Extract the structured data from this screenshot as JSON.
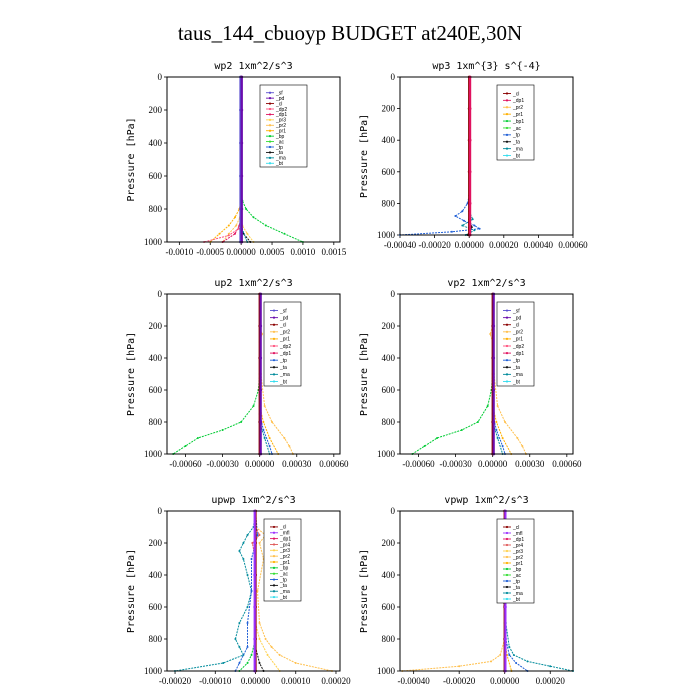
{
  "figure_title": "taus_144_cbuoyp  BUDGET at240E,30N",
  "colors": {
    "sf": "#5a4fcf",
    "pd": "#6a0dad",
    "cl": "#8b0000",
    "mfl": "#9b30ff",
    "dp1": "#e0115f",
    "dp2": "#ff4f7b",
    "dp4": "#cc3366",
    "pr1": "#ffb000",
    "pr2": "#ffc04d",
    "pr3": "#ffd24d",
    "pr4": "#e05a5a",
    "bp": "#00cc33",
    "bp1": "#00cc33",
    "ac": "#33dd33",
    "tp": "#1f5fd6",
    "ta": "#111111",
    "ma": "#008b9b",
    "bt": "#33ddee"
  },
  "chart_data": [
    {
      "type": "line",
      "title": "wp2  1xm^2/s^3",
      "ylabel": "Pressure [hPa]",
      "ylim": [
        1000,
        0
      ],
      "yticks": [
        0,
        200,
        400,
        600,
        800,
        1000
      ],
      "xlim": [
        -0.0012,
        0.0016
      ],
      "xtick_labels": [
        "-0.0010",
        "-0.0005",
        "0.00000",
        "0.0005",
        "0.0010",
        "0.0015"
      ],
      "xtick_values": [
        -0.001,
        -0.0005,
        0,
        0.0005,
        0.001,
        0.0015
      ],
      "legend": [
        "_sf",
        "_pd",
        "_cl",
        "_dp2",
        "_dp1",
        "_pr3",
        "_pr2",
        "_pr1",
        "_bp",
        "_ac",
        "_tp",
        "_ta",
        "_ma",
        "_bt"
      ],
      "series": [
        {
          "key": "bp",
          "p": [
            700,
            750,
            800,
            850,
            900,
            950,
            1000
          ],
          "x": [
            0,
            2e-05,
            8e-05,
            0.0002,
            0.0004,
            0.0007,
            0.001
          ]
        },
        {
          "key": "pr1",
          "p": [
            750,
            800,
            850,
            900,
            950,
            1000
          ],
          "x": [
            0,
            -3e-05,
            -0.0001,
            -0.0002,
            -0.00035,
            -0.0005
          ]
        },
        {
          "key": "pr2",
          "p": [
            800,
            850,
            900,
            950,
            1000
          ],
          "x": [
            0,
            -2e-05,
            -8e-05,
            -0.0002,
            -0.0003
          ]
        },
        {
          "key": "pr3",
          "p": [
            850,
            900,
            950,
            1000
          ],
          "x": [
            0,
            2e-05,
            0.0001,
            0.0002
          ]
        },
        {
          "key": "dp1",
          "p": [
            850,
            900,
            950,
            1000
          ],
          "x": [
            0,
            -3e-05,
            -0.0001,
            -0.0003
          ]
        },
        {
          "key": "dp2",
          "p": [
            880,
            920,
            960,
            1000
          ],
          "x": [
            0,
            -4e-05,
            -0.0002,
            -0.0006
          ]
        },
        {
          "key": "ta",
          "p": [
            900,
            950,
            1000
          ],
          "x": [
            0,
            4e-05,
            0.00015
          ]
        },
        {
          "key": "ma",
          "p": [
            880,
            940,
            1000
          ],
          "x": [
            0,
            3e-05,
            0.0001
          ]
        },
        {
          "key": "cl",
          "p": [
            0,
            200,
            400,
            600,
            800,
            1000
          ],
          "x": [
            0,
            0,
            0,
            0,
            0,
            0
          ]
        },
        {
          "key": "sf",
          "p": [
            0,
            200,
            400,
            600,
            800,
            1000
          ],
          "x": [
            -1e-05,
            -1e-05,
            -1e-05,
            -1e-05,
            -1e-05,
            -1e-05
          ]
        },
        {
          "key": "pd",
          "p": [
            0,
            200,
            400,
            600,
            800,
            1000
          ],
          "x": [
            1e-05,
            1e-05,
            1e-05,
            1e-05,
            1e-05,
            1e-05
          ]
        }
      ]
    },
    {
      "type": "line",
      "title": "wp3  1xm^{3} s^{-4}",
      "ylabel": "Pressure [hPa]",
      "ylim": [
        1000,
        0
      ],
      "yticks": [
        0,
        200,
        400,
        600,
        800,
        1000
      ],
      "xlim": [
        -0.0004,
        0.0006
      ],
      "xtick_labels": [
        "-0.00040",
        "-0.00020",
        "0.00000",
        "0.00020",
        "0.00040",
        "0.00060"
      ],
      "xtick_values": [
        -0.0004,
        -0.0002,
        0,
        0.0002,
        0.0004,
        0.0006
      ],
      "legend": [
        "_cl",
        "_dp1",
        "_pr2",
        "_pr1",
        "_bp1",
        "_ac",
        "_tp",
        "_ta",
        "_ma",
        "_bt"
      ],
      "series": [
        {
          "key": "tp",
          "p": [
            750,
            800,
            850,
            880,
            910,
            940,
            960,
            980,
            1000
          ],
          "x": [
            0,
            -1e-05,
            -4e-05,
            -8e-05,
            -3e-05,
            3e-05,
            6e-05,
            -0.0001,
            -0.0004
          ]
        },
        {
          "key": "ma",
          "p": [
            850,
            900,
            940,
            970,
            1000
          ],
          "x": [
            0,
            2e-05,
            -4e-05,
            3e-05,
            -2e-05
          ]
        },
        {
          "key": "ta",
          "p": [
            900,
            950,
            1000
          ],
          "x": [
            0,
            1.5e-05,
            -1e-05
          ]
        },
        {
          "key": "cl",
          "p": [
            0,
            200,
            400,
            600,
            800,
            1000
          ],
          "x": [
            0,
            0,
            0,
            0,
            0,
            0
          ]
        },
        {
          "key": "dp1",
          "p": [
            0,
            200,
            400,
            600,
            800,
            1000
          ],
          "x": [
            5e-06,
            5e-06,
            5e-06,
            5e-06,
            5e-06,
            5e-06
          ]
        }
      ]
    },
    {
      "type": "line",
      "title": "up2  1xm^2/s^3",
      "ylabel": "Pressure [hPa]",
      "ylim": [
        1000,
        0
      ],
      "yticks": [
        0,
        200,
        400,
        600,
        800,
        1000
      ],
      "xlim": [
        -0.00075,
        0.00065
      ],
      "xtick_labels": [
        "-0.00060",
        "-0.00030",
        "0.00000",
        "0.00030",
        "0.00060"
      ],
      "xtick_values": [
        -0.0006,
        -0.0003,
        0,
        0.0003,
        0.0006
      ],
      "legend": [
        "_sf",
        "_pd",
        "_cl",
        "_pr2",
        "_pr1",
        "_dp2",
        "_dp1",
        "_tp",
        "_ta",
        "_ma",
        "_bt"
      ],
      "series": [
        {
          "key": "bp",
          "p": [
            500,
            600,
            700,
            800,
            850,
            900,
            950,
            1000
          ],
          "x": [
            0,
            -1e-05,
            -5e-05,
            -0.00015,
            -0.0003,
            -0.0005,
            -0.0006,
            -0.0007
          ]
        },
        {
          "key": "pr2",
          "p": [
            200,
            250,
            300,
            500,
            700,
            800,
            900,
            950,
            1000
          ],
          "x": [
            0,
            2e-05,
            0,
            1e-05,
            4e-05,
            0.0001,
            0.0002,
            0.00024,
            0.00027
          ]
        },
        {
          "key": "pr1",
          "p": [
            700,
            800,
            900,
            1000
          ],
          "x": [
            0,
            3e-05,
            8e-05,
            0.00015
          ]
        },
        {
          "key": "tp",
          "p": [
            750,
            850,
            950,
            1000
          ],
          "x": [
            0,
            3e-05,
            8e-05,
            0.0001
          ]
        },
        {
          "key": "ma",
          "p": [
            800,
            900,
            1000
          ],
          "x": [
            0,
            4e-05,
            8e-05
          ]
        },
        {
          "key": "cl",
          "p": [
            0,
            200,
            400,
            600,
            800,
            1000
          ],
          "x": [
            0,
            0,
            0,
            0,
            0,
            0
          ]
        },
        {
          "key": "pd",
          "p": [
            0,
            200,
            400,
            600,
            800,
            1000
          ],
          "x": [
            8e-06,
            8e-06,
            8e-06,
            8e-06,
            8e-06,
            8e-06
          ]
        }
      ]
    },
    {
      "type": "line",
      "title": "vp2  1xm^2/s^3",
      "ylabel": "Pressure [hPa]",
      "ylim": [
        1000,
        0
      ],
      "yticks": [
        0,
        200,
        400,
        600,
        800,
        1000
      ],
      "xlim": [
        -0.00075,
        0.00065
      ],
      "xtick_labels": [
        "-0.00060",
        "-0.00030",
        "0.00000",
        "0.00030",
        "0.00060"
      ],
      "xtick_values": [
        -0.0006,
        -0.0003,
        0,
        0.0003,
        0.0006
      ],
      "legend": [
        "_sf",
        "_pd",
        "_cl",
        "_pr2",
        "_pr1",
        "_dp2",
        "_dp1",
        "_tp",
        "_ta",
        "_ma",
        "_bt"
      ],
      "series": [
        {
          "key": "bp",
          "p": [
            500,
            600,
            700,
            800,
            850,
            900,
            950,
            1000
          ],
          "x": [
            0,
            -1e-05,
            -4e-05,
            -0.00012,
            -0.00025,
            -0.00045,
            -0.00055,
            -0.00065
          ]
        },
        {
          "key": "pr2",
          "p": [
            200,
            250,
            300,
            500,
            700,
            800,
            900,
            950,
            1000
          ],
          "x": [
            0,
            -2e-05,
            0,
            1e-05,
            4e-05,
            0.0001,
            0.0002,
            0.00024,
            0.00027
          ]
        },
        {
          "key": "pr1",
          "p": [
            700,
            800,
            900,
            1000
          ],
          "x": [
            0,
            3e-05,
            8e-05,
            0.00015
          ]
        },
        {
          "key": "tp",
          "p": [
            750,
            850,
            950,
            1000
          ],
          "x": [
            0,
            3e-05,
            8e-05,
            0.0001
          ]
        },
        {
          "key": "ma",
          "p": [
            800,
            900,
            1000
          ],
          "x": [
            0,
            4e-05,
            8e-05
          ]
        },
        {
          "key": "cl",
          "p": [
            0,
            200,
            400,
            600,
            800,
            1000
          ],
          "x": [
            0,
            0,
            0,
            0,
            0,
            0
          ]
        },
        {
          "key": "pd",
          "p": [
            0,
            200,
            400,
            600,
            800,
            1000
          ],
          "x": [
            8e-06,
            8e-06,
            8e-06,
            8e-06,
            8e-06,
            8e-06
          ]
        }
      ]
    },
    {
      "type": "line",
      "title": "upwp  1xm^2/s^3",
      "ylabel": "Pressure [hPa]",
      "ylim": [
        1000,
        0
      ],
      "yticks": [
        0,
        200,
        400,
        600,
        800,
        1000
      ],
      "xlim": [
        -0.00022,
        0.00021
      ],
      "xtick_labels": [
        "-0.00020",
        "-0.00010",
        "0.00000",
        "0.00010",
        "0.00020"
      ],
      "xtick_values": [
        -0.0002,
        -0.0001,
        0,
        0.0001,
        0.0002
      ],
      "legend": [
        "_cl",
        "_mfl",
        "_dp1",
        "_pr4",
        "_pr3",
        "_pr2",
        "_pr1",
        "_bp",
        "_ac",
        "_tp",
        "_ta",
        "_ma",
        "_bt"
      ],
      "series": [
        {
          "key": "ma",
          "p": [
            0,
            100,
            150,
            200,
            250,
            300,
            400,
            500,
            600,
            700,
            800,
            850,
            900,
            950,
            1000
          ],
          "x": [
            0,
            -5e-06,
            -2e-05,
            -3e-05,
            -4e-05,
            -3e-05,
            -2e-05,
            -1e-05,
            -2e-05,
            -4e-05,
            -5e-05,
            -4e-05,
            -3e-05,
            -8e-05,
            -0.0002
          ]
        },
        {
          "key": "tp",
          "p": [
            0,
            150,
            300,
            500,
            700,
            850,
            950,
            1000
          ],
          "x": [
            0,
            5e-06,
            -1e-05,
            -1e-05,
            -2e-05,
            -2e-05,
            -4e-05,
            -5e-05
          ]
        },
        {
          "key": "pr2",
          "p": [
            100,
            150,
            200,
            300,
            500,
            700,
            800,
            850,
            900,
            950,
            1000
          ],
          "x": [
            0,
            2.5e-05,
            1e-05,
            2e-05,
            5e-06,
            1e-05,
            2.5e-05,
            4e-05,
            6e-05,
            0.0001,
            0.00019
          ]
        },
        {
          "key": "pr3",
          "p": [
            700,
            800,
            900,
            1000
          ],
          "x": [
            0,
            1e-05,
            3e-05,
            6e-05
          ]
        },
        {
          "key": "pr4",
          "p": [
            100,
            150,
            200,
            300
          ],
          "x": [
            0,
            1e-05,
            -8e-06,
            0
          ]
        },
        {
          "key": "bp",
          "p": [
            800,
            900,
            950,
            1000
          ],
          "x": [
            0,
            -1e-05,
            -2e-05,
            -4e-05
          ]
        },
        {
          "key": "ta",
          "p": [
            850,
            950,
            1000
          ],
          "x": [
            0,
            1e-05,
            2e-05
          ]
        },
        {
          "key": "cl",
          "p": [
            0,
            200,
            400,
            600,
            800,
            1000
          ],
          "x": [
            0,
            0,
            0,
            0,
            0,
            0
          ]
        },
        {
          "key": "mfl",
          "p": [
            0,
            200,
            400,
            600,
            800,
            1000
          ],
          "x": [
            -2e-06,
            -2e-06,
            -2e-06,
            -2e-06,
            -2e-06,
            -2e-06
          ]
        }
      ]
    },
    {
      "type": "line",
      "title": "vpwp  1xm^2/s^3",
      "ylabel": "Pressure [hPa]",
      "ylim": [
        1000,
        0
      ],
      "yticks": [
        0,
        200,
        400,
        600,
        800,
        1000
      ],
      "xlim": [
        -0.00046,
        0.0003
      ],
      "xtick_labels": [
        "-0.00040",
        "-0.00020",
        "0.00000",
        "0.00020"
      ],
      "xtick_values": [
        -0.0004,
        -0.0002,
        0,
        0.0002
      ],
      "legend": [
        "_cl",
        "_mfl",
        "_dp1",
        "_pr4",
        "_pr3",
        "_pr2",
        "_pr1",
        "_bp",
        "_ac",
        "_tp",
        "_ta",
        "_ma",
        "_bt"
      ],
      "series": [
        {
          "key": "pr2",
          "p": [
            800,
            900,
            940,
            970,
            1000
          ],
          "x": [
            0,
            -2e-05,
            -6e-05,
            -0.0002,
            -0.00045
          ]
        },
        {
          "key": "ma",
          "p": [
            100,
            300,
            500,
            700,
            850,
            900,
            940,
            970,
            1000
          ],
          "x": [
            0,
            -1e-05,
            -1e-05,
            5e-06,
            2e-05,
            4e-05,
            0.0001,
            0.0002,
            0.0003
          ]
        },
        {
          "key": "tp",
          "p": [
            700,
            800,
            900,
            950,
            1000
          ],
          "x": [
            0,
            5e-06,
            2e-05,
            5e-05,
            0.0001
          ]
        },
        {
          "key": "pr1",
          "p": [
            800,
            900,
            1000
          ],
          "x": [
            0,
            1e-05,
            3e-05
          ]
        },
        {
          "key": "cl",
          "p": [
            0,
            200,
            400,
            600,
            800,
            1000
          ],
          "x": [
            0,
            0,
            0,
            0,
            0,
            0
          ]
        },
        {
          "key": "mfl",
          "p": [
            0,
            200,
            400,
            600,
            800,
            1000
          ],
          "x": [
            3e-06,
            3e-06,
            3e-06,
            3e-06,
            3e-06,
            3e-06
          ]
        }
      ]
    }
  ]
}
